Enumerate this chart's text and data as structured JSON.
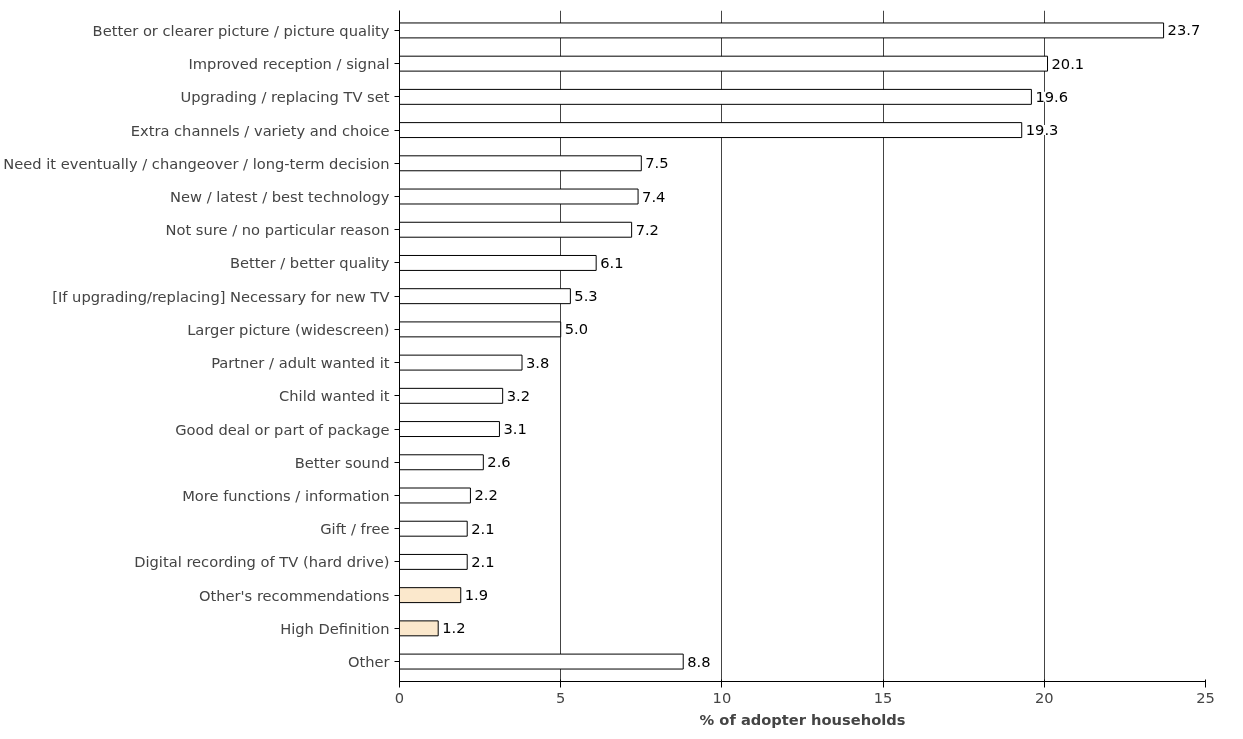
{
  "chart_data": {
    "type": "bar",
    "orientation": "horizontal",
    "xlabel": "% of adopter households",
    "categories": [
      "Better or clearer picture / picture quality",
      "Improved reception / signal",
      "Upgrading / replacing TV set",
      "Extra channels / variety and choice",
      "Need it eventually / changeover / long-term decision",
      "New / latest / best technology",
      "Not sure / no particular reason",
      "Better / better quality",
      "[If upgrading/replacing] Necessary for new TV",
      "Larger picture (widescreen)",
      "Partner / adult wanted it",
      "Child wanted it",
      "Good deal or part of package",
      "Better sound",
      "More functions / information",
      "Gift / free",
      "Digital recording of TV (hard drive)",
      "Other's recommendations",
      "High Definition",
      "Other"
    ],
    "values": [
      23.7,
      20.1,
      19.6,
      19.3,
      7.5,
      7.4,
      7.2,
      6.1,
      5.3,
      5.0,
      3.8,
      3.2,
      3.1,
      2.6,
      2.2,
      2.1,
      2.1,
      1.9,
      1.2,
      8.8
    ],
    "colors": [
      "#ffffff",
      "#ffffff",
      "#ffffff",
      "#ffffff",
      "#ffffff",
      "#ffffff",
      "#ffffff",
      "#ffffff",
      "#ffffff",
      "#ffffff",
      "#ffffff",
      "#ffffff",
      "#ffffff",
      "#ffffff",
      "#ffffff",
      "#ffffff",
      "#ffffff",
      "#fbe8cc",
      "#fbe8cc",
      "#ffffff"
    ],
    "value_labels": [
      "23.7",
      "20.1",
      "19.6",
      "19.3",
      "7.5",
      "7.4",
      "7.2",
      "6.1",
      "5.3",
      "5.0",
      "3.8",
      "3.2",
      "3.1",
      "2.6",
      "2.2",
      "2.1",
      "2.1",
      "1.9",
      "1.2",
      "8.8"
    ],
    "xlim": [
      0,
      25
    ],
    "xticks": [
      0,
      5,
      10,
      15,
      20,
      25
    ],
    "grid": "x"
  }
}
